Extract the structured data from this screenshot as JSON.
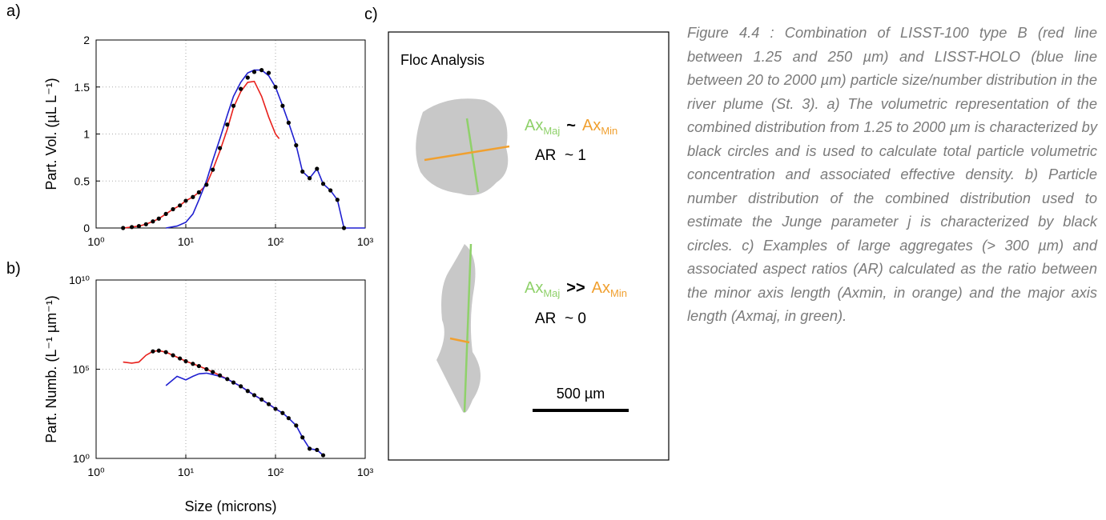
{
  "chart_data": [
    {
      "type": "line",
      "panel": "a)",
      "y_label": "Part. Vol. (µL L⁻¹)",
      "xlog": true,
      "ylog": false,
      "grid": true,
      "xlim": [
        1,
        1000
      ],
      "ylim": [
        0,
        2
      ],
      "xticks": [
        {
          "value": 1,
          "label": "10⁰"
        },
        {
          "value": 10,
          "label": "10¹"
        },
        {
          "value": 100,
          "label": "10²"
        },
        {
          "value": 1000,
          "label": "10³"
        }
      ],
      "yticks": [
        0,
        0.5,
        1,
        1.5,
        2
      ],
      "series": [
        {
          "color": "#e8201c",
          "style": "line",
          "x": [
            2,
            2.5,
            3,
            3.6,
            4.3,
            5,
            6,
            7.2,
            8.6,
            10,
            12,
            14,
            17,
            20,
            24,
            29,
            34,
            41,
            49,
            58,
            70,
            84,
            100,
            110
          ],
          "values": [
            0,
            0.01,
            0.02,
            0.04,
            0.07,
            0.1,
            0.15,
            0.2,
            0.24,
            0.29,
            0.33,
            0.38,
            0.46,
            0.62,
            0.82,
            1.05,
            1.28,
            1.45,
            1.55,
            1.56,
            1.4,
            1.18,
            1.0,
            0.95
          ]
        },
        {
          "color": "#1f1fd0",
          "style": "line",
          "x": [
            6,
            8,
            10,
            12,
            14,
            17,
            20,
            24,
            29,
            34,
            41,
            49,
            58,
            70,
            84,
            100,
            120,
            140,
            170,
            200,
            240,
            290,
            340,
            410,
            490,
            580,
            1000
          ],
          "values": [
            0,
            0.02,
            0.06,
            0.15,
            0.3,
            0.5,
            0.72,
            0.95,
            1.2,
            1.4,
            1.55,
            1.65,
            1.68,
            1.68,
            1.62,
            1.5,
            1.3,
            1.12,
            0.88,
            0.6,
            0.53,
            0.63,
            0.47,
            0.4,
            0.3,
            0,
            0
          ]
        },
        {
          "color": "#000000",
          "style": "markers",
          "x": [
            2,
            2.5,
            3,
            3.6,
            4.3,
            5,
            6,
            7.2,
            8.6,
            10,
            12,
            14,
            17,
            20,
            24,
            29,
            34,
            41,
            49,
            58,
            70,
            84,
            100,
            120,
            140,
            170,
            200,
            240,
            290,
            340,
            410,
            490,
            580
          ],
          "values": [
            0,
            0.01,
            0.02,
            0.04,
            0.07,
            0.1,
            0.15,
            0.2,
            0.24,
            0.29,
            0.33,
            0.38,
            0.46,
            0.62,
            0.85,
            1.1,
            1.3,
            1.48,
            1.6,
            1.66,
            1.68,
            1.65,
            1.5,
            1.3,
            1.12,
            0.88,
            0.6,
            0.53,
            0.63,
            0.47,
            0.4,
            0.3,
            0
          ]
        }
      ]
    },
    {
      "type": "line",
      "panel": "b)",
      "y_label": "Part. Numb. (L⁻¹ µm⁻¹)",
      "x_label": "Size (microns)",
      "xlog": true,
      "ylog": true,
      "grid": true,
      "xlim": [
        1,
        1000
      ],
      "ylim": [
        1,
        10000000000
      ],
      "xticks": [
        {
          "value": 1,
          "label": "10⁰"
        },
        {
          "value": 10,
          "label": "10¹"
        },
        {
          "value": 100,
          "label": "10²"
        },
        {
          "value": 1000,
          "label": "10³"
        }
      ],
      "yticks": [
        {
          "value": 1,
          "label": "10⁰"
        },
        {
          "value": 100000,
          "label": "10⁵"
        },
        {
          "value": 10000000000,
          "label": "10¹⁰"
        }
      ],
      "series": [
        {
          "color": "#e8201c",
          "style": "line",
          "x": [
            2,
            2.5,
            3,
            3.6,
            4.3,
            5,
            6,
            7.2,
            8.6,
            10,
            12,
            14,
            17,
            20,
            24,
            29,
            34,
            41,
            49,
            58,
            70,
            84,
            100,
            110
          ],
          "values": [
            250000,
            220000,
            250000,
            600000,
            1000000,
            1100000,
            900000,
            600000,
            400000,
            280000,
            200000,
            150000,
            100000,
            70000,
            45000,
            28000,
            18000,
            11000,
            6000,
            3500,
            2000,
            1100,
            600,
            450
          ]
        },
        {
          "color": "#1f1fd0",
          "style": "line",
          "x": [
            6,
            8,
            10,
            12,
            14,
            17,
            20,
            24,
            29,
            34,
            41,
            49,
            58,
            70,
            84,
            100,
            120,
            140,
            170,
            200,
            240,
            290,
            340
          ],
          "values": [
            12000,
            40000,
            25000,
            40000,
            55000,
            60000,
            50000,
            40000,
            28000,
            18000,
            11000,
            6000,
            3500,
            2000,
            1100,
            600,
            350,
            180,
            70,
            15,
            3.5,
            3,
            1.5
          ]
        },
        {
          "color": "#000000",
          "style": "markers",
          "x": [
            4.3,
            5,
            6,
            7.2,
            8.6,
            10,
            12,
            14,
            17,
            20,
            24,
            29,
            34,
            41,
            49,
            58,
            70,
            84,
            100,
            120,
            140,
            170,
            200,
            240,
            290,
            340
          ],
          "values": [
            1000000,
            1100000,
            900000,
            600000,
            400000,
            280000,
            200000,
            150000,
            100000,
            70000,
            45000,
            28000,
            18000,
            11000,
            6000,
            3500,
            2000,
            1100,
            600,
            350,
            180,
            70,
            15,
            3.5,
            3,
            1.5
          ]
        }
      ]
    }
  ],
  "panel_c": {
    "label": "c)",
    "title": "Floc Analysis",
    "scale_bar": "500 µm",
    "examples": [
      {
        "major": "Ax",
        "major_sub": "Maj",
        "relation": "~",
        "minor": "Ax",
        "minor_sub": "Min",
        "ratio": "AR  ~ 1"
      },
      {
        "major": "Ax",
        "major_sub": "Maj",
        "relation": ">>",
        "minor": "Ax",
        "minor_sub": "Min",
        "ratio": "AR  ~ 0"
      }
    ]
  },
  "caption": "Figure 4.4 : Combination of LISST-100 type B (red line between 1.25 and 250 µm) and LISST-HOLO (blue line between 20 to 2000 µm) particle size/number distribution in the river plume (St. 3). a) The volumetric representation of the combined distribution from 1.25 to 2000 µm is characterized by black circles and is used to calculate total particle volumetric concentration and associated effective density. b) Particle number distribution of the combined distribution used to estimate the Junge parameter j is characterized by black circles. c) Examples of large aggregates (> 300 µm) and associated aspect ratios (AR) calculated as the ratio between the minor axis length (Axmin, in orange) and the major axis length (Axmaj, in green)."
}
